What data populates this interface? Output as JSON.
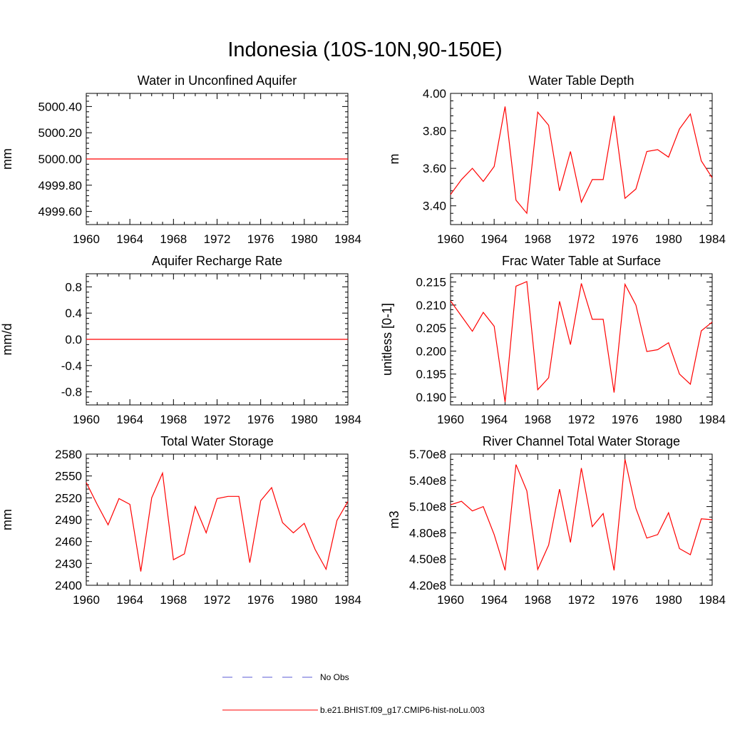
{
  "title": "Indonesia (10S-10N,90-150E)",
  "legend": [
    {
      "label": "No Obs",
      "color": "#5b5bd6",
      "dash": true
    },
    {
      "label": "b.e21.BHIST.f09_g17.CMIP6-hist-noLu.003",
      "color": "#ff0000",
      "dash": false
    }
  ],
  "chart_data": [
    {
      "type": "line",
      "title": "Water in Unconfined Aquifer",
      "ylabel": "mm",
      "xlabel": "",
      "xlim": [
        1960,
        1984
      ],
      "ylim": [
        4999.5,
        5000.5
      ],
      "xticks": [
        1960,
        1964,
        1968,
        1972,
        1976,
        1980,
        1984
      ],
      "yticks": [
        4999.6,
        4999.8,
        5000.0,
        5000.2,
        5000.4
      ],
      "yticklabels": [
        "4999.60",
        "4999.80",
        "5000.00",
        "5000.20",
        "5000.40"
      ],
      "grid": false,
      "x": [
        1960,
        1961,
        1962,
        1963,
        1964,
        1965,
        1966,
        1967,
        1968,
        1969,
        1970,
        1971,
        1972,
        1973,
        1974,
        1975,
        1976,
        1977,
        1978,
        1979,
        1980,
        1981,
        1982,
        1983,
        1984
      ],
      "series": [
        {
          "values": [
            5000,
            5000,
            5000,
            5000,
            5000,
            5000,
            5000,
            5000,
            5000,
            5000,
            5000,
            5000,
            5000,
            5000,
            5000,
            5000,
            5000,
            5000,
            5000,
            5000,
            5000,
            5000,
            5000,
            5000,
            5000
          ]
        }
      ]
    },
    {
      "type": "line",
      "title": "Water Table Depth",
      "ylabel": "m",
      "xlabel": "",
      "xlim": [
        1960,
        1984
      ],
      "ylim": [
        3.3,
        4.0
      ],
      "xticks": [
        1960,
        1964,
        1968,
        1972,
        1976,
        1980,
        1984
      ],
      "yticks": [
        3.4,
        3.6,
        3.8,
        4.0
      ],
      "yticklabels": [
        "3.40",
        "3.60",
        "3.80",
        "4.00"
      ],
      "grid": false,
      "x": [
        1960,
        1961,
        1962,
        1963,
        1964,
        1965,
        1966,
        1967,
        1968,
        1969,
        1970,
        1971,
        1972,
        1973,
        1974,
        1975,
        1976,
        1977,
        1978,
        1979,
        1980,
        1981,
        1982,
        1983,
        1984
      ],
      "series": [
        {
          "values": [
            3.46,
            3.54,
            3.6,
            3.53,
            3.61,
            3.93,
            3.43,
            3.36,
            3.9,
            3.83,
            3.48,
            3.69,
            3.42,
            3.54,
            3.54,
            3.88,
            3.44,
            3.49,
            3.69,
            3.7,
            3.66,
            3.81,
            3.89,
            3.64,
            3.55
          ]
        }
      ]
    },
    {
      "type": "line",
      "title": "Aquifer Recharge Rate",
      "ylabel": "mm/d",
      "xlabel": "",
      "xlim": [
        1960,
        1984
      ],
      "ylim": [
        -1.0,
        1.0
      ],
      "xticks": [
        1960,
        1964,
        1968,
        1972,
        1976,
        1980,
        1984
      ],
      "yticks": [
        -0.8,
        -0.4,
        0.0,
        0.4,
        0.8
      ],
      "yticklabels": [
        "-0.8",
        "-0.4",
        "0.0",
        "0.4",
        "0.8"
      ],
      "grid": false,
      "x": [
        1960,
        1961,
        1962,
        1963,
        1964,
        1965,
        1966,
        1967,
        1968,
        1969,
        1970,
        1971,
        1972,
        1973,
        1974,
        1975,
        1976,
        1977,
        1978,
        1979,
        1980,
        1981,
        1982,
        1983,
        1984
      ],
      "series": [
        {
          "values": [
            0,
            0,
            0,
            0,
            0,
            0,
            0,
            0,
            0,
            0,
            0,
            0,
            0,
            0,
            0,
            0,
            0,
            0,
            0,
            0,
            0,
            0,
            0,
            0,
            0
          ]
        }
      ]
    },
    {
      "type": "line",
      "title": "Frac Water Table at Surface",
      "ylabel": "unitless [0-1]",
      "xlabel": "",
      "xlim": [
        1960,
        1984
      ],
      "ylim": [
        0.1883,
        0.2168
      ],
      "xticks": [
        1960,
        1964,
        1968,
        1972,
        1976,
        1980,
        1984
      ],
      "yticks": [
        0.19,
        0.195,
        0.2,
        0.205,
        0.21,
        0.215
      ],
      "yticklabels": [
        "0.190",
        "0.195",
        "0.200",
        "0.205",
        "0.210",
        "0.215"
      ],
      "grid": false,
      "x": [
        1960,
        1961,
        1962,
        1963,
        1964,
        1965,
        1966,
        1967,
        1968,
        1969,
        1970,
        1971,
        1972,
        1973,
        1974,
        1975,
        1976,
        1977,
        1978,
        1979,
        1980,
        1981,
        1982,
        1983,
        1984
      ],
      "series": [
        {
          "values": [
            0.2109,
            0.2076,
            0.2043,
            0.2084,
            0.2054,
            0.1889,
            0.2141,
            0.2151,
            0.1916,
            0.1942,
            0.2108,
            0.2014,
            0.2147,
            0.2069,
            0.2069,
            0.191,
            0.2145,
            0.21,
            0.1999,
            0.2003,
            0.2018,
            0.195,
            0.1928,
            0.2044,
            0.2063
          ]
        }
      ]
    },
    {
      "type": "line",
      "title": "Total Water Storage",
      "ylabel": "mm",
      "xlabel": "",
      "xlim": [
        1960,
        1984
      ],
      "ylim": [
        2400,
        2580
      ],
      "xticks": [
        1960,
        1964,
        1968,
        1972,
        1976,
        1980,
        1984
      ],
      "yticks": [
        2400,
        2430,
        2460,
        2490,
        2520,
        2550,
        2580
      ],
      "yticklabels": [
        "2400",
        "2430",
        "2460",
        "2490",
        "2520",
        "2550",
        "2580"
      ],
      "grid": false,
      "x": [
        1960,
        1961,
        1962,
        1963,
        1964,
        1965,
        1966,
        1967,
        1968,
        1969,
        1970,
        1971,
        1972,
        1973,
        1974,
        1975,
        1976,
        1977,
        1978,
        1979,
        1980,
        1981,
        1982,
        1983,
        1984
      ],
      "series": [
        {
          "values": [
            2541,
            2511,
            2483,
            2519,
            2511,
            2419,
            2520,
            2554,
            2435,
            2443,
            2508,
            2472,
            2519,
            2522,
            2522,
            2431,
            2516,
            2534,
            2486,
            2472,
            2485,
            2449,
            2422,
            2489,
            2515
          ]
        }
      ]
    },
    {
      "type": "line",
      "title": "River Channel Total Water Storage",
      "ylabel": "m3",
      "xlabel": "",
      "xlim": [
        1960,
        1984
      ],
      "ylim": [
        420000000,
        570000000
      ],
      "xticks": [
        1960,
        1964,
        1968,
        1972,
        1976,
        1980,
        1984
      ],
      "yticks": [
        420000000,
        450000000,
        480000000,
        510000000,
        540000000,
        570000000
      ],
      "yticklabels": [
        "4.20e8",
        "4.50e8",
        "4.80e8",
        "5.10e8",
        "5.40e8",
        "5.70e8"
      ],
      "grid": false,
      "x": [
        1960,
        1961,
        1962,
        1963,
        1964,
        1965,
        1966,
        1967,
        1968,
        1969,
        1970,
        1971,
        1972,
        1973,
        1974,
        1975,
        1976,
        1977,
        1978,
        1979,
        1980,
        1981,
        1982,
        1983,
        1984
      ],
      "series": [
        {
          "values": [
            512000000,
            516000000,
            505000000,
            510000000,
            478000000,
            437000000,
            558000000,
            528000000,
            438000000,
            466000000,
            530000000,
            469000000,
            554000000,
            487000000,
            502000000,
            437000000,
            564000000,
            508000000,
            474000000,
            478000000,
            503000000,
            462000000,
            455000000,
            496000000,
            495000000
          ]
        }
      ]
    }
  ]
}
